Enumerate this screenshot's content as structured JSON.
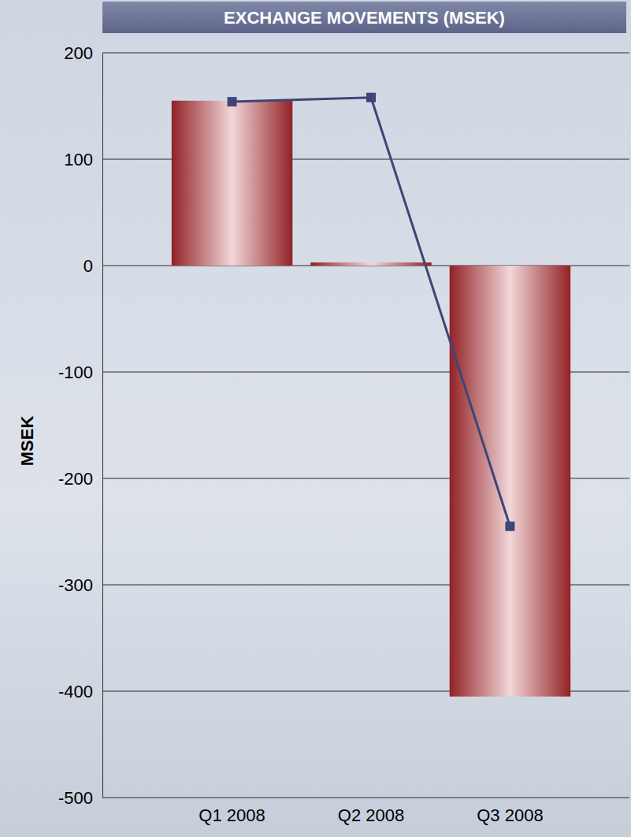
{
  "chart_data": {
    "type": "bar",
    "title": "EXCHANGE MOVEMENTS (MSEK)",
    "y_label": "MSEK",
    "categories": [
      "Q1 2008",
      "Q2 2008",
      "Q3 2008"
    ],
    "series": [
      {
        "type": "bar",
        "color": "#a3262a",
        "values": [
          155,
          3,
          -405
        ]
      },
      {
        "type": "line",
        "color": "#3d4677",
        "marker": "square",
        "values": [
          154,
          158,
          -245
        ]
      }
    ],
    "ylim": [
      -500,
      200
    ],
    "yticks": [
      -500,
      -400,
      -300,
      -200,
      -100,
      0,
      100,
      200
    ],
    "grid": true
  }
}
